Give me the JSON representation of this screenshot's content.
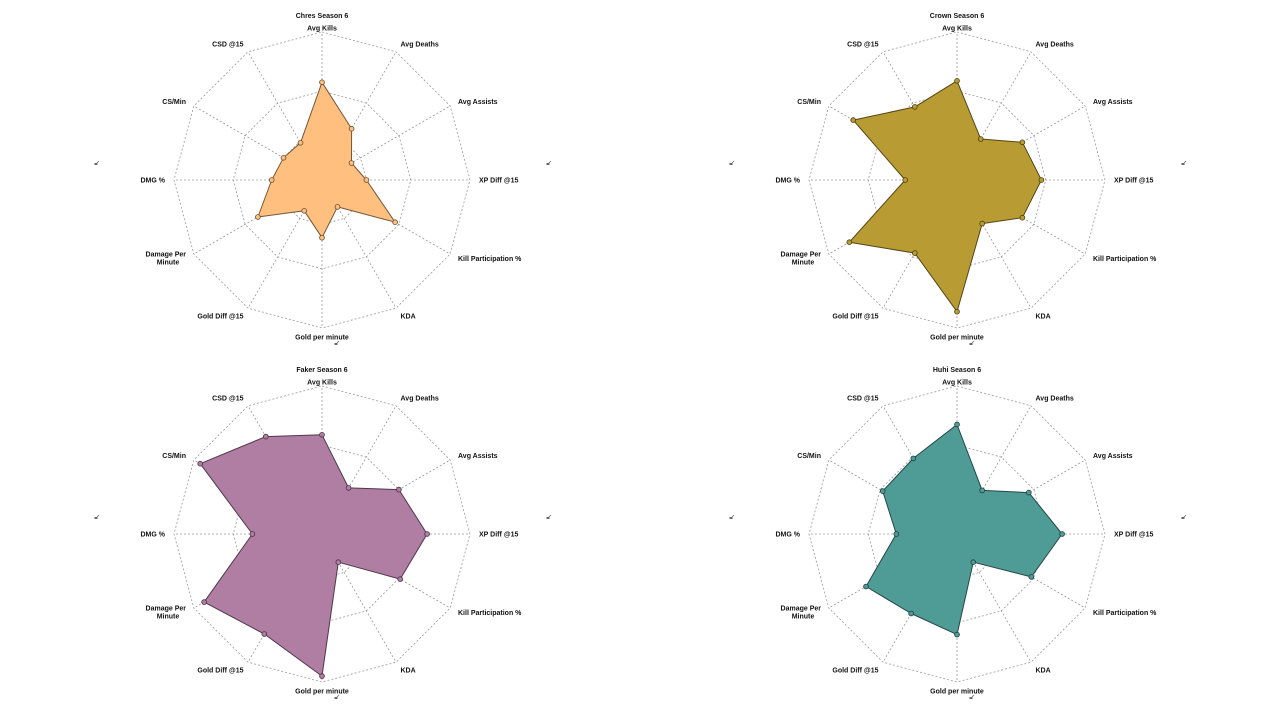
{
  "chart_data": [
    {
      "type": "radar",
      "title": "Chres Season 6",
      "axes": [
        "Avg Kills",
        "Avg Deaths",
        "Avg Assists",
        "XP Diff @15",
        "Kill Participation %",
        "KDA",
        "Gold per minute",
        "Gold Diff @15",
        "Damage Per Minute",
        "DMG %",
        "CS/Min",
        "CSD @15"
      ],
      "values": [
        0.66,
        0.4,
        0.23,
        0.3,
        0.57,
        0.21,
        0.39,
        0.24,
        0.5,
        0.34,
        0.3,
        0.29
      ],
      "range": [
        0,
        1
      ],
      "color": "#FFBF7F"
    },
    {
      "type": "radar",
      "title": "Crown Season 6",
      "axes": [
        "Avg Kills",
        "Avg Deaths",
        "Avg Assists",
        "XP Diff @15",
        "Kill Participation %",
        "KDA",
        "Gold per minute",
        "Gold Diff @15",
        "Damage Per Minute",
        "DMG %",
        "CS/Min",
        "CSD @15"
      ],
      "values": [
        0.67,
        0.32,
        0.51,
        0.57,
        0.51,
        0.34,
        0.89,
        0.57,
        0.84,
        0.35,
        0.81,
        0.57
      ],
      "range": [
        0,
        1
      ],
      "color": "#B89B33"
    },
    {
      "type": "radar",
      "title": "Faker Season 6",
      "axes": [
        "Avg Kills",
        "Avg Deaths",
        "Avg Assists",
        "XP Diff @15",
        "Kill Participation %",
        "KDA",
        "Gold per minute",
        "Gold Diff @15",
        "Damage Per Minute",
        "DMG %",
        "CS/Min",
        "CSD @15"
      ],
      "values": [
        0.67,
        0.36,
        0.6,
        0.71,
        0.61,
        0.22,
        0.96,
        0.78,
        0.92,
        0.47,
        0.95,
        0.76
      ],
      "range": [
        0,
        1
      ],
      "color": "#B07DA3"
    },
    {
      "type": "radar",
      "title": "Huhi Season 6",
      "axes": [
        "Avg Kills",
        "Avg Deaths",
        "Avg Assists",
        "XP Diff @15",
        "Kill Participation %",
        "KDA",
        "Gold per minute",
        "Gold Diff @15",
        "Damage Per Minute",
        "DMG %",
        "CS/Min",
        "CSD @15"
      ],
      "values": [
        0.74,
        0.34,
        0.56,
        0.71,
        0.58,
        0.22,
        0.68,
        0.62,
        0.71,
        0.41,
        0.58,
        0.59
      ],
      "range": [
        0,
        1
      ],
      "color": "#4F9B96"
    }
  ]
}
